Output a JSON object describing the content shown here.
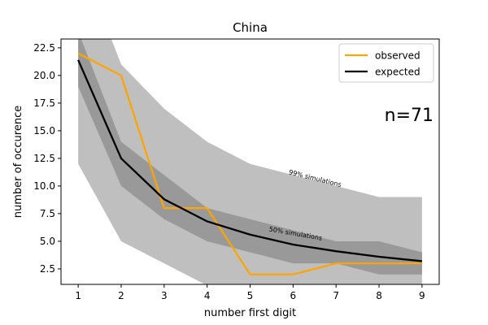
{
  "chart_data": {
    "type": "line",
    "title": "China",
    "xlabel": "number first digit",
    "ylabel": "number of occurence",
    "xlim": [
      0.6,
      9.4
    ],
    "ylim": [
      1.1,
      23.3
    ],
    "x": [
      1,
      2,
      3,
      4,
      5,
      6,
      7,
      8,
      9
    ],
    "x_ticks": [
      1,
      2,
      3,
      4,
      5,
      6,
      7,
      8,
      9
    ],
    "y_ticks": [
      2.5,
      5.0,
      7.5,
      10.0,
      12.5,
      15.0,
      17.5,
      20.0,
      22.5
    ],
    "y_tick_labels": [
      "2.5",
      "5.0",
      "7.5",
      "10.0",
      "12.5",
      "15.0",
      "17.5",
      "20.0",
      "22.5"
    ],
    "series": [
      {
        "name": "observed",
        "color": "#FFA500",
        "values": [
          22,
          20,
          8,
          8,
          2,
          2,
          3,
          3,
          3
        ]
      },
      {
        "name": "expected",
        "color": "#000000",
        "values": [
          21.4,
          12.5,
          8.8,
          6.8,
          5.6,
          4.7,
          4.1,
          3.6,
          3.2
        ]
      }
    ],
    "bands": [
      {
        "label": "99% simulations",
        "color": "#bfbfbf",
        "lower": [
          12,
          5,
          3,
          1,
          0,
          0,
          0,
          0,
          0
        ],
        "upper": [
          31,
          21,
          17,
          14,
          12,
          11,
          10,
          9,
          9
        ],
        "label_x": 6.5,
        "label_y": 10.5,
        "label_angle": 14
      },
      {
        "label": "50% simulations",
        "color": "#999999",
        "lower": [
          19,
          10,
          7,
          5,
          4,
          3,
          3,
          2,
          2
        ],
        "upper": [
          24,
          14,
          11,
          8,
          7,
          6,
          5,
          5,
          4
        ],
        "label_x": 6.05,
        "label_y": 5.5,
        "label_angle": 10
      }
    ],
    "annotation": "n=71",
    "legend_position": "upper-right",
    "grid": false
  }
}
